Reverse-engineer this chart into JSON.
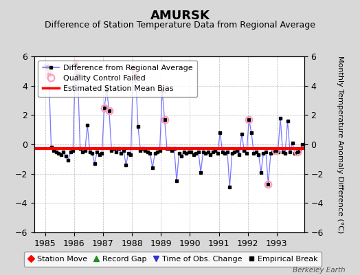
{
  "title": "AMURSK",
  "subtitle": "Difference of Station Temperature Data from Regional Average",
  "ylabel": "Monthly Temperature Anomaly Difference (°C)",
  "watermark": "Berkeley Earth",
  "xlim": [
    1984.62,
    1993.95
  ],
  "ylim": [
    -6,
    6
  ],
  "yticks": [
    -6,
    -4,
    -2,
    0,
    2,
    4,
    6
  ],
  "xticks": [
    1985,
    1986,
    1987,
    1988,
    1989,
    1990,
    1991,
    1992,
    1993
  ],
  "bias_value": -0.3,
  "line_color": "#7777ff",
  "marker_color": "#000000",
  "bias_color": "#ff0000",
  "qc_color": "#ff99bb",
  "bg_color": "#d8d8d8",
  "plot_bg_color": "#ffffff",
  "grid_color": "#aaaaaa",
  "data_x": [
    1985.042,
    1985.125,
    1985.208,
    1985.292,
    1985.375,
    1985.458,
    1985.542,
    1985.625,
    1985.708,
    1985.792,
    1985.875,
    1985.958,
    1986.042,
    1986.125,
    1986.208,
    1986.292,
    1986.375,
    1986.458,
    1986.542,
    1986.625,
    1986.708,
    1986.792,
    1986.875,
    1986.958,
    1987.042,
    1987.125,
    1987.208,
    1987.292,
    1987.375,
    1987.458,
    1987.542,
    1987.625,
    1987.708,
    1987.792,
    1987.875,
    1987.958,
    1988.042,
    1988.125,
    1988.208,
    1988.292,
    1988.375,
    1988.458,
    1988.542,
    1988.625,
    1988.708,
    1988.792,
    1988.875,
    1988.958,
    1989.042,
    1989.125,
    1989.208,
    1989.292,
    1989.375,
    1989.458,
    1989.542,
    1989.625,
    1989.708,
    1989.792,
    1989.875,
    1989.958,
    1990.042,
    1990.125,
    1990.208,
    1990.292,
    1990.375,
    1990.458,
    1990.542,
    1990.625,
    1990.708,
    1990.792,
    1990.875,
    1990.958,
    1991.042,
    1991.125,
    1991.208,
    1991.292,
    1991.375,
    1991.458,
    1991.542,
    1991.625,
    1991.708,
    1991.792,
    1991.875,
    1991.958,
    1992.042,
    1992.125,
    1992.208,
    1992.292,
    1992.375,
    1992.458,
    1992.542,
    1992.625,
    1992.708,
    1992.792,
    1992.875,
    1992.958,
    1993.042,
    1993.125,
    1993.208,
    1993.292,
    1993.375,
    1993.458,
    1993.542,
    1993.625,
    1993.708,
    1993.792,
    1993.875
  ],
  "data_y": [
    5.3,
    4.8,
    -0.2,
    -0.4,
    -0.5,
    -0.6,
    -0.7,
    -0.5,
    -0.8,
    -1.1,
    -0.5,
    -0.4,
    5.5,
    4.7,
    -0.3,
    -0.5,
    -0.4,
    1.3,
    -0.5,
    -0.6,
    -1.3,
    -0.5,
    -0.7,
    -0.6,
    2.5,
    3.7,
    2.3,
    -0.4,
    -0.3,
    -0.5,
    -0.3,
    -0.6,
    -0.4,
    -1.4,
    -0.6,
    -0.7,
    5.2,
    4.7,
    1.2,
    -0.4,
    -0.3,
    -0.4,
    -0.5,
    -0.6,
    -1.6,
    -0.6,
    -0.5,
    -0.4,
    3.7,
    1.7,
    -0.3,
    -0.3,
    -0.4,
    -0.3,
    -2.5,
    -0.6,
    -0.8,
    -0.5,
    -0.6,
    -0.5,
    -0.5,
    -0.7,
    -0.6,
    -0.5,
    -1.9,
    -0.5,
    -0.6,
    -0.5,
    -0.7,
    -0.5,
    -0.4,
    -0.6,
    0.8,
    -0.5,
    -0.6,
    -0.5,
    -2.9,
    -0.6,
    -0.5,
    -0.4,
    -0.7,
    0.7,
    -0.4,
    -0.6,
    1.7,
    0.8,
    -0.6,
    -0.5,
    -0.7,
    -1.9,
    -0.6,
    -0.5,
    -2.7,
    -0.6,
    -0.5,
    -0.4,
    -0.5,
    1.8,
    -0.5,
    -0.6,
    1.6,
    -0.5,
    0.1,
    -0.6,
    -0.5,
    -0.4,
    0.0
  ],
  "qc_failed_indices": [
    0,
    1,
    12,
    13,
    24,
    26,
    36,
    37,
    48,
    49,
    84,
    92,
    95,
    104
  ],
  "title_fontsize": 13,
  "subtitle_fontsize": 9,
  "tick_fontsize": 9,
  "ylabel_fontsize": 8,
  "legend_fontsize": 8
}
